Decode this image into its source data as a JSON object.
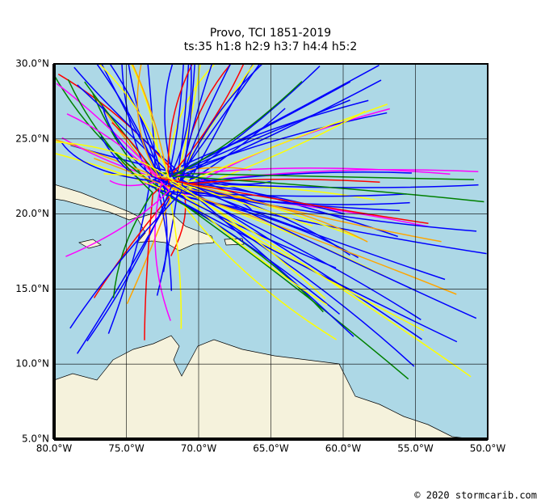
{
  "header": {
    "title": "Provo, TCI 1851-2019",
    "subtitle": "ts:35  h1:8  h2:9  h3:7  h4:4  h5:2"
  },
  "map": {
    "lon_labels": [
      "80.0°W",
      "75.0°W",
      "70.0°W",
      "65.0°W",
      "60.0°W",
      "55.0°W",
      "50.0°W"
    ],
    "lat_labels": [
      "30.0°N",
      "25.0°N",
      "20.0°N",
      "15.0°N",
      "10.0°N",
      "5.0°N"
    ]
  },
  "footer": {
    "credit": "© 2020 stormcarib.com"
  }
}
